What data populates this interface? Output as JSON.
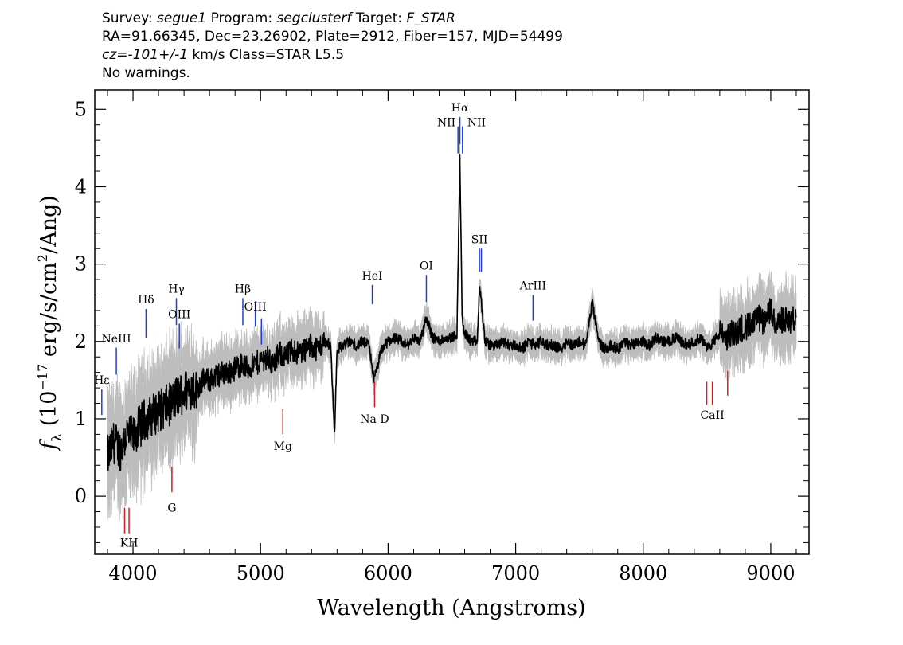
{
  "header": {
    "survey_label": "Survey:",
    "survey": "segue1",
    "program_label": "Program:",
    "program": "segclusterf",
    "target_label": "Target:",
    "target": "F_STAR",
    "line2": "RA=91.66345, Dec=23.26902, Plate=2912, Fiber=157, MJD=54499",
    "cz": "cz=-101+/-1",
    "line3_rest": " km/s Class=STAR L5.5",
    "line4": "No warnings."
  },
  "chart_data": {
    "type": "line",
    "xlabel": "Wavelength (Angstroms)",
    "ylabel_prefix": "f",
    "ylabel_sub": "λ",
    "ylabel_body": " (10",
    "ylabel_exp": "−17",
    "ylabel_units": " erg/s/cm",
    "ylabel_exp2": "2",
    "ylabel_end": "/Ang)",
    "xlim": [
      3700,
      9300
    ],
    "ylim": [
      -0.75,
      5.25
    ],
    "xticks": [
      "4000",
      "5000",
      "6000",
      "7000",
      "8000",
      "9000"
    ],
    "xtick_values": [
      4000,
      5000,
      6000,
      7000,
      8000,
      9000
    ],
    "yticks": [
      "0",
      "1",
      "2",
      "3",
      "4",
      "5"
    ],
    "ytick_values": [
      0,
      1,
      2,
      3,
      4,
      5
    ],
    "series": [
      {
        "color": "#000000",
        "x": [
          3800,
          3850,
          3900,
          3950,
          4000,
          4050,
          4100,
          4150,
          4200,
          4250,
          4300,
          4350,
          4400,
          4450,
          4500,
          4550,
          4600,
          4650,
          4700,
          4750,
          4800,
          4850,
          4900,
          4950,
          5000,
          5050,
          5100,
          5150,
          5200,
          5250,
          5300,
          5350,
          5400,
          5450,
          5500,
          5550,
          5580,
          5600,
          5650,
          5700,
          5750,
          5800,
          5850,
          5890,
          5950,
          6000,
          6050,
          6100,
          6150,
          6200,
          6250,
          6300,
          6350,
          6400,
          6450,
          6500,
          6540,
          6563,
          6580,
          6600,
          6650,
          6700,
          6716,
          6731,
          6760,
          6800,
          6850,
          6900,
          6950,
          7000,
          7050,
          7100,
          7150,
          7200,
          7250,
          7300,
          7350,
          7400,
          7450,
          7500,
          7550,
          7600,
          7650,
          7700,
          7750,
          7800,
          7850,
          7900,
          7950,
          8000,
          8050,
          8100,
          8150,
          8200,
          8250,
          8300,
          8350,
          8400,
          8450,
          8500,
          8550,
          8600,
          8650,
          8700,
          8750,
          8800,
          8850,
          8900,
          8950,
          9000,
          9050,
          9100,
          9150,
          9200
        ],
        "y": [
          0.5,
          0.7,
          0.6,
          0.8,
          0.75,
          0.9,
          1.0,
          1.05,
          1.1,
          1.15,
          1.2,
          1.3,
          1.35,
          1.4,
          1.4,
          1.5,
          1.5,
          1.55,
          1.6,
          1.6,
          1.65,
          1.7,
          1.65,
          1.7,
          1.75,
          1.8,
          1.7,
          1.85,
          1.8,
          1.9,
          1.85,
          1.9,
          1.95,
          1.9,
          2.0,
          1.95,
          0.8,
          1.9,
          1.95,
          2.0,
          1.95,
          2.0,
          1.95,
          1.5,
          1.9,
          2.0,
          2.05,
          2.0,
          1.95,
          2.05,
          2.0,
          2.3,
          2.05,
          2.0,
          2.05,
          2.05,
          2.1,
          4.4,
          2.3,
          2.1,
          2.0,
          2.0,
          2.7,
          2.5,
          2.0,
          1.95,
          1.95,
          2.0,
          1.95,
          1.95,
          1.9,
          2.0,
          1.95,
          2.0,
          1.95,
          1.95,
          1.9,
          2.0,
          1.95,
          2.0,
          1.95,
          2.5,
          2.0,
          1.9,
          1.95,
          1.9,
          2.0,
          1.95,
          2.0,
          2.0,
          1.95,
          2.05,
          2.0,
          2.0,
          2.05,
          2.0,
          1.95,
          2.0,
          2.05,
          1.9,
          2.0,
          2.1,
          2.05,
          2.1,
          2.15,
          2.2,
          2.2,
          2.3,
          2.25,
          2.4,
          2.2,
          2.3,
          2.25,
          2.3
        ],
        "error_band_color": "#bdbdbd"
      }
    ],
    "emission_lines": [
      {
        "label": "Hε",
        "x": 3755,
        "y_bottom": 1.05,
        "y_top": 1.38,
        "label_y": 1.45,
        "color": "#1f3fd1",
        "side": "above"
      },
      {
        "label": "NeIII",
        "x": 3869,
        "y_bottom": 1.57,
        "y_top": 1.92,
        "label_y": 1.99,
        "color": "#1f3fd1",
        "side": "above"
      },
      {
        "label": "Hδ",
        "x": 4102,
        "y_bottom": 2.05,
        "y_top": 2.42,
        "label_y": 2.49,
        "color": "#1f3fd1",
        "side": "above"
      },
      {
        "label": "Hγ",
        "x": 4340,
        "y_bottom": 2.21,
        "y_top": 2.56,
        "label_y": 2.63,
        "color": "#1f3fd1",
        "side": "above"
      },
      {
        "label": "OIII",
        "x": 4363,
        "y_bottom": 1.91,
        "y_top": 2.23,
        "label_y": 2.3,
        "color": "#1f3fd1",
        "side": "above"
      },
      {
        "label": "Hβ",
        "x": 4861,
        "y_bottom": 2.21,
        "y_top": 2.56,
        "label_y": 2.63,
        "color": "#1f3fd1",
        "side": "above"
      },
      {
        "label": "OIII",
        "x": 4959,
        "y_bottom": 2.19,
        "y_top": 2.52,
        "label_y": 2.4,
        "color": "#1f3fd1",
        "side": "above"
      },
      {
        "label": "",
        "x": 5007,
        "y_bottom": 1.96,
        "y_top": 2.3,
        "label_y": 0,
        "color": "#1f3fd1",
        "side": "above"
      },
      {
        "label": "HeI",
        "x": 5876,
        "y_bottom": 2.48,
        "y_top": 2.73,
        "label_y": 2.8,
        "color": "#1f3fd1",
        "side": "above"
      },
      {
        "label": "OI",
        "x": 6300,
        "y_bottom": 2.51,
        "y_top": 2.86,
        "label_y": 2.93,
        "color": "#1f3fd1",
        "side": "above"
      },
      {
        "label": "NII",
        "x": 6548,
        "y_bottom": 4.43,
        "y_top": 4.78,
        "label_y": 4.78,
        "color": "#1f3fd1",
        "side": "left"
      },
      {
        "label": "Hα",
        "x": 6563,
        "y_bottom": 4.55,
        "y_top": 4.9,
        "label_y": 4.97,
        "color": "#1f3fd1",
        "side": "above"
      },
      {
        "label": "NII",
        "x": 6583,
        "y_bottom": 4.43,
        "y_top": 4.78,
        "label_y": 4.78,
        "color": "#1f3fd1",
        "side": "right"
      },
      {
        "label": "SII",
        "x": 6716,
        "y_bottom": 2.9,
        "y_top": 3.2,
        "label_y": 3.27,
        "color": "#1f3fd1",
        "side": "above"
      },
      {
        "label": "",
        "x": 6731,
        "y_bottom": 2.9,
        "y_top": 3.2,
        "label_y": 0,
        "color": "#1f3fd1",
        "side": "above"
      },
      {
        "label": "ArIII",
        "x": 7136,
        "y_bottom": 2.27,
        "y_top": 2.6,
        "label_y": 2.67,
        "color": "#1f3fd1",
        "side": "above"
      }
    ],
    "absorption_lines": [
      {
        "label": "",
        "x": 3934,
        "y_bottom": -0.48,
        "y_top": -0.15,
        "label_y": 0,
        "color": "#d11f1f"
      },
      {
        "label": "KH",
        "x": 3969,
        "y_bottom": -0.48,
        "y_top": -0.15,
        "label_y": -0.65,
        "color": "#d11f1f"
      },
      {
        "label": "G",
        "x": 4305,
        "y_bottom": 0.05,
        "y_top": 0.38,
        "label_y": -0.2,
        "color": "#d11f1f"
      },
      {
        "label": "Mg",
        "x": 5175,
        "y_bottom": 0.8,
        "y_top": 1.13,
        "label_y": 0.6,
        "color": "#d11f1f"
      },
      {
        "label": "Na D",
        "x": 5894,
        "y_bottom": 1.15,
        "y_top": 1.48,
        "label_y": 0.95,
        "color": "#d11f1f"
      },
      {
        "label": "",
        "x": 8498,
        "y_bottom": 1.18,
        "y_top": 1.48,
        "label_y": 0,
        "color": "#d11f1f"
      },
      {
        "label": "CaII",
        "x": 8542,
        "y_bottom": 1.18,
        "y_top": 1.48,
        "label_y": 1.0,
        "color": "#d11f1f"
      },
      {
        "label": "",
        "x": 8662,
        "y_bottom": 1.3,
        "y_top": 1.62,
        "label_y": 0,
        "color": "#d11f1f"
      }
    ]
  }
}
